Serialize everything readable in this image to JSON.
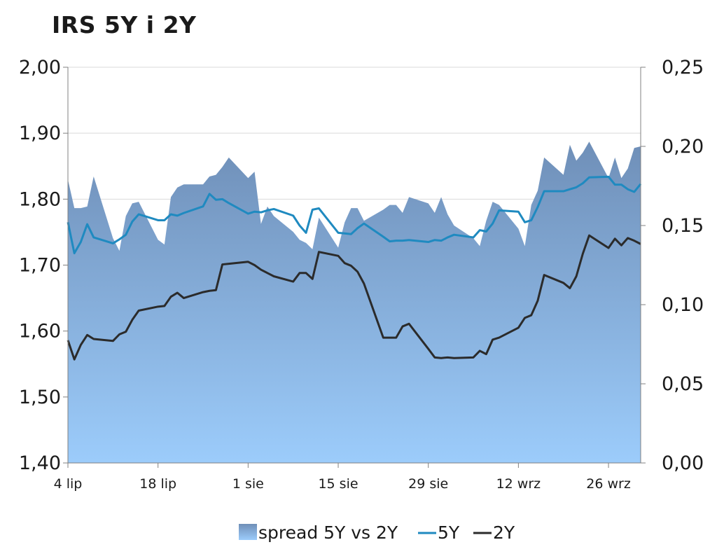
{
  "title": "IRS 5Y i 2Y",
  "colors": {
    "line5y": "#1f8ac0",
    "line2y": "#2b2b2b",
    "area_top": "#6f8fb8",
    "area_bottom": "#9cccfb",
    "grid": "#d9d9d9",
    "axis": "#808080"
  },
  "chart_data": {
    "type": "line",
    "title": "IRS 5Y i 2Y",
    "x_ticks": [
      "4 lip",
      "18 lip",
      "1 sie",
      "15 sie",
      "29 sie",
      "12 wrz",
      "26 wrz"
    ],
    "y_left_ticks": [
      "1,40",
      "1,50",
      "1,60",
      "1,70",
      "1,80",
      "1,90",
      "2,00"
    ],
    "y_right_ticks": [
      "0,00",
      "0,05",
      "0,10",
      "0,15",
      "0,20",
      "0,25"
    ],
    "y_left_range": [
      1.4,
      2.0
    ],
    "y_right_range": [
      0.0,
      0.25
    ],
    "grid": true,
    "legend": "bottom",
    "legend_entries": [
      "spread 5Y vs 2Y",
      "5Y",
      "2Y"
    ],
    "x": [
      0,
      1,
      2,
      3,
      4,
      7,
      8,
      9,
      10,
      11,
      14,
      15,
      16,
      17,
      18,
      21,
      22,
      23,
      24,
      25,
      28,
      29,
      30,
      31,
      32,
      35,
      36,
      37,
      38,
      39,
      42,
      43,
      44,
      45,
      46,
      49,
      50,
      51,
      52,
      53,
      56,
      57,
      58,
      59,
      60,
      63,
      64,
      65,
      66,
      67,
      70,
      71,
      72,
      73,
      74,
      77,
      78,
      79,
      80,
      81,
      84,
      85,
      86,
      87,
      88,
      89
    ],
    "series": [
      {
        "name": "spread 5Y vs 2Y",
        "axis": "right",
        "values": [
          0.179,
          0.161,
          0.161,
          0.162,
          0.181,
          0.142,
          0.134,
          0.156,
          0.164,
          0.165,
          0.141,
          0.138,
          0.168,
          0.174,
          0.176,
          0.176,
          0.181,
          0.182,
          0.187,
          0.193,
          0.18,
          0.184,
          0.151,
          0.162,
          0.156,
          0.146,
          0.141,
          0.139,
          0.135,
          0.155,
          0.136,
          0.152,
          0.161,
          0.161,
          0.153,
          0.16,
          0.163,
          0.163,
          0.158,
          0.168,
          0.164,
          0.158,
          0.168,
          0.157,
          0.15,
          0.142,
          0.137,
          0.153,
          0.165,
          0.163,
          0.148,
          0.137,
          0.163,
          0.172,
          0.193,
          0.182,
          0.201,
          0.191,
          0.196,
          0.203,
          0.18,
          0.193,
          0.18,
          0.186,
          0.199,
          0.2
        ]
      },
      {
        "name": "5Y",
        "axis": "left",
        "values": [
          1.765,
          1.718,
          1.735,
          1.762,
          1.742,
          1.733,
          1.739,
          1.746,
          1.766,
          1.777,
          1.768,
          1.768,
          1.777,
          1.775,
          1.779,
          1.789,
          1.808,
          1.799,
          1.8,
          1.794,
          1.778,
          1.781,
          1.78,
          1.783,
          1.785,
          1.775,
          1.76,
          1.749,
          1.784,
          1.786,
          1.749,
          1.748,
          1.747,
          1.756,
          1.763,
          1.743,
          1.736,
          1.737,
          1.737,
          1.738,
          1.735,
          1.738,
          1.737,
          1.742,
          1.746,
          1.742,
          1.753,
          1.751,
          1.763,
          1.783,
          1.781,
          1.765,
          1.768,
          1.788,
          1.812,
          1.812,
          1.815,
          1.818,
          1.824,
          1.833,
          1.834,
          1.822,
          1.822,
          1.815,
          1.811,
          1.823
        ]
      },
      {
        "name": "2Y",
        "axis": "left",
        "values": [
          1.586,
          1.557,
          1.579,
          1.594,
          1.588,
          1.585,
          1.595,
          1.599,
          1.617,
          1.631,
          1.637,
          1.638,
          1.652,
          1.658,
          1.65,
          1.659,
          1.661,
          1.662,
          1.701,
          1.702,
          1.705,
          1.7,
          1.693,
          1.688,
          1.683,
          1.675,
          1.688,
          1.688,
          1.679,
          1.72,
          1.714,
          1.703,
          1.699,
          1.69,
          1.672,
          1.59,
          1.59,
          1.59,
          1.607,
          1.611,
          1.573,
          1.56,
          1.559,
          1.56,
          1.559,
          1.56,
          1.57,
          1.565,
          1.587,
          1.59,
          1.605,
          1.62,
          1.624,
          1.646,
          1.685,
          1.673,
          1.665,
          1.683,
          1.717,
          1.745,
          1.726,
          1.74,
          1.73,
          1.741,
          1.737,
          1.732
        ]
      }
    ]
  }
}
